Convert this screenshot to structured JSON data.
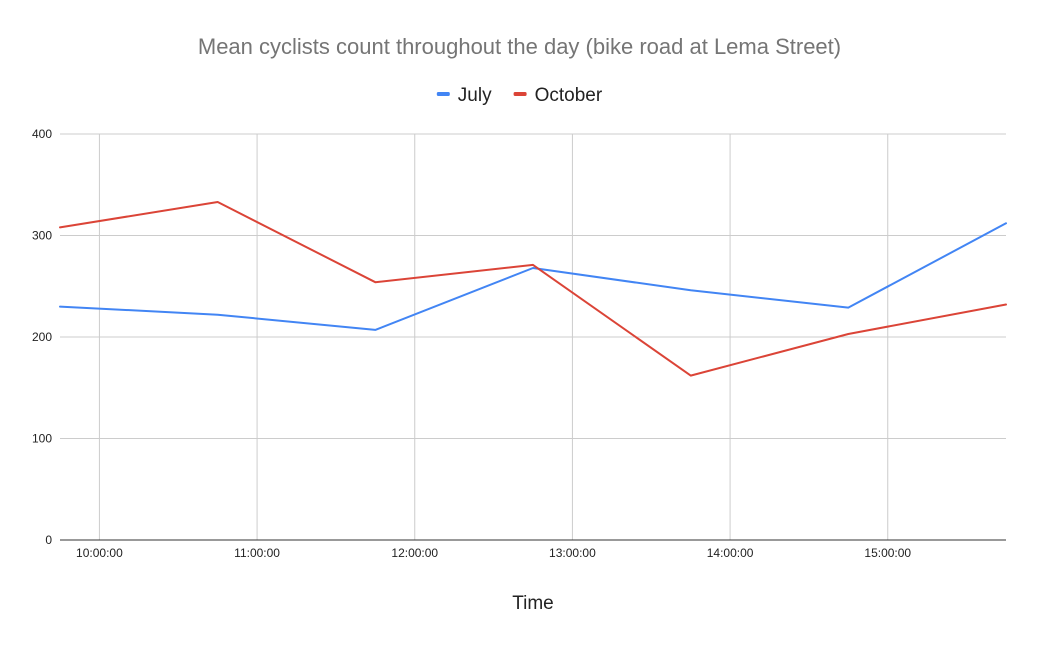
{
  "chart_data": {
    "type": "line",
    "title": "Mean cyclists count throughout the day (bike road at Lema Street)",
    "xlabel": "Time",
    "ylabel": "",
    "ylim": [
      0,
      400
    ],
    "y_ticks": [
      0,
      100,
      200,
      300,
      400
    ],
    "x_ticks": [
      "10:00:00",
      "11:00:00",
      "12:00:00",
      "13:00:00",
      "14:00:00",
      "15:00:00"
    ],
    "x_tick_hours": [
      10,
      11,
      12,
      13,
      14,
      15
    ],
    "x_hours": [
      9.75,
      10.75,
      11.75,
      12.75,
      13.75,
      14.75,
      15.75
    ],
    "xlim_hours": [
      9.75,
      15.75
    ],
    "grid": true,
    "legend_position": "top",
    "series": [
      {
        "name": "July",
        "color": "#4285f4",
        "values": [
          230,
          222,
          207,
          268,
          246,
          229,
          312
        ]
      },
      {
        "name": "October",
        "color": "#db4437",
        "values": [
          308,
          333,
          254,
          271,
          162,
          203,
          232
        ]
      }
    ]
  }
}
